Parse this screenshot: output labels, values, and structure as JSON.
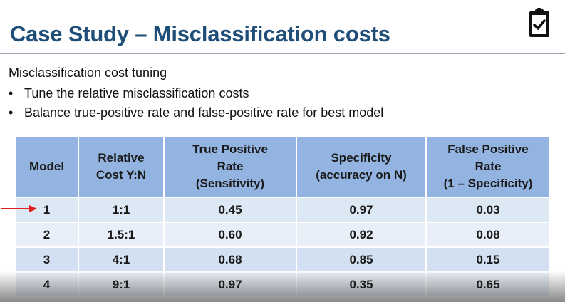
{
  "slide": {
    "title": "Case Study – Misclassification costs",
    "subtitle": "Misclassification cost tuning",
    "bullets": [
      "Tune the relative misclassification costs",
      "Balance true-positive rate and false-positive rate for best model"
    ],
    "bullet_glyph": "•",
    "icon": "clipboard-check-icon"
  },
  "table": {
    "headers": [
      [
        "Model"
      ],
      [
        "Relative",
        "Cost Y:N"
      ],
      [
        "True Positive",
        "Rate",
        "(Sensitivity)"
      ],
      [
        "Specificity",
        "(accuracy on N)"
      ],
      [
        "False Positive",
        "Rate",
        "(1 – Specificity)"
      ]
    ],
    "rows": [
      {
        "model": "1",
        "cost": "1:1",
        "tpr": "0.45",
        "spec": "0.97",
        "fpr": "0.03"
      },
      {
        "model": "2",
        "cost": "1.5:1",
        "tpr": "0.60",
        "spec": "0.92",
        "fpr": "0.08"
      },
      {
        "model": "3",
        "cost": "4:1",
        "tpr": "0.68",
        "spec": "0.85",
        "fpr": "0.15"
      },
      {
        "model": "4",
        "cost": "9:1",
        "tpr": "0.97",
        "spec": "0.35",
        "fpr": "0.65"
      }
    ],
    "highlight_color": "#e02020"
  }
}
